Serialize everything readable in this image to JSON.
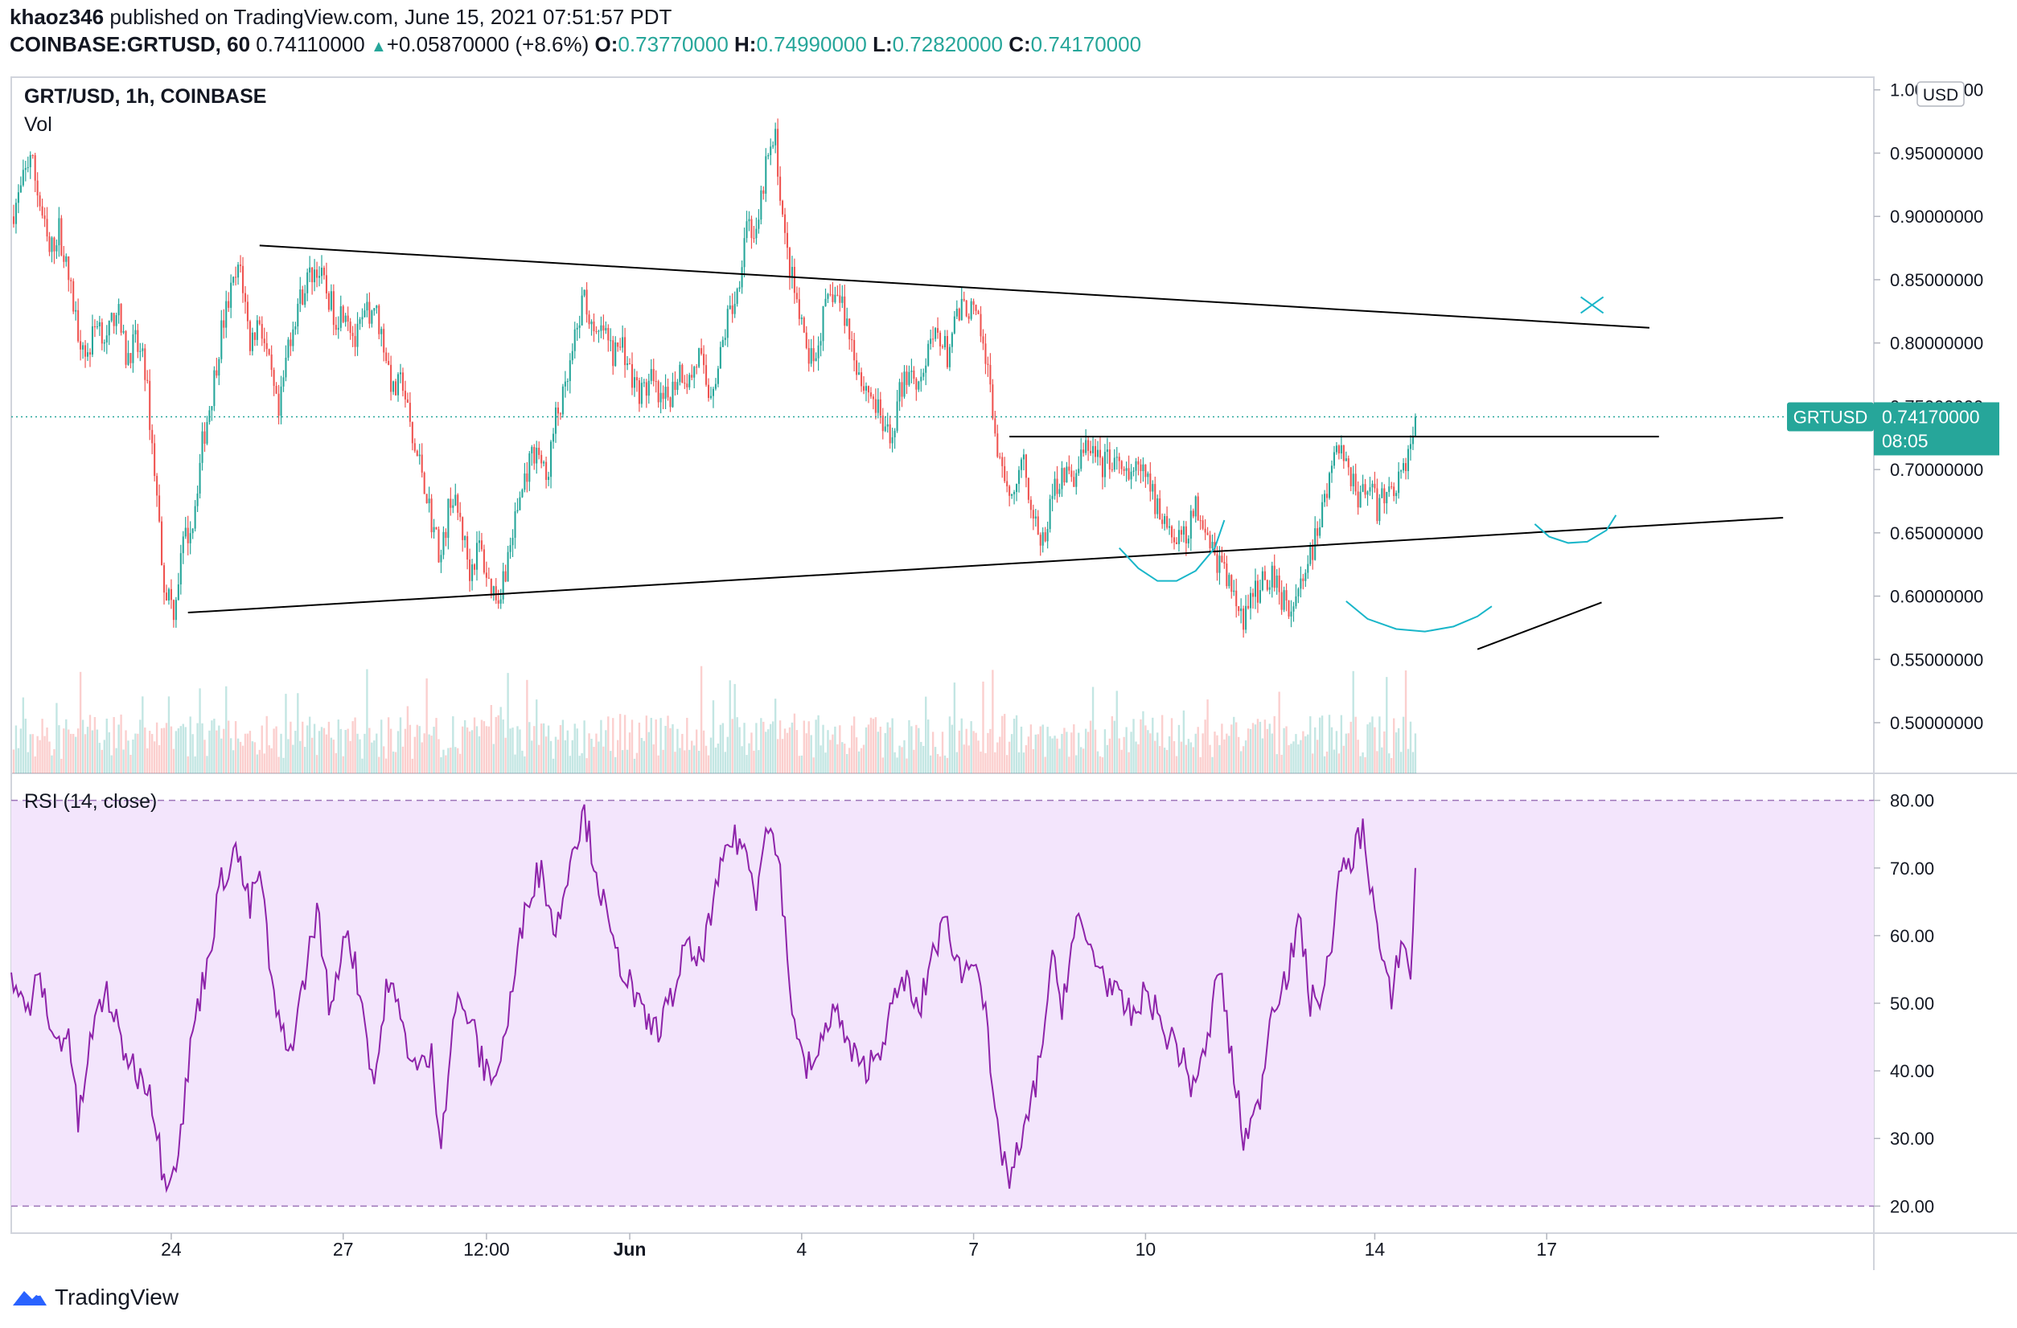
{
  "header": {
    "author": "khaoz346",
    "published_text": "published on TradingView.com, June 15, 2021 07:51:57 PDT",
    "symbol_line": "COINBASE:GRTUSD, 60",
    "last": "0.74110000",
    "change": "+0.05870000 (+8.6%)",
    "o_label": "O:",
    "o": "0.73770000",
    "h_label": "H:",
    "h": "0.74990000",
    "l_label": "L:",
    "l": "0.72820000",
    "c_label": "C:",
    "c": "0.74170000"
  },
  "panes": {
    "price_legend_1": "GRT/USD, 1h, COINBASE",
    "price_legend_2": "Vol",
    "rsi_legend": "RSI (14, close)",
    "currency_badge": "USD"
  },
  "price_label": {
    "symbol": "GRTUSD",
    "value": "0.74170000",
    "countdown": "08:05"
  },
  "footer": {
    "brand": "TradingView"
  },
  "colors": {
    "up": "#26a69a",
    "down": "#ef5350",
    "rsi_line": "#8e24aa",
    "rsi_band": "#f3e5fc",
    "drawing": "#000000",
    "accent_curve": "#19b6c9"
  },
  "chart_data": [
    {
      "type": "candlestick",
      "title": "GRT/USD, 1h, COINBASE",
      "ylim": [
        0.46,
        1.01
      ],
      "y_ticks": [
        "0.50000000",
        "0.55000000",
        "0.60000000",
        "0.65000000",
        "0.70000000",
        "0.75000000",
        "0.80000000",
        "0.85000000",
        "0.90000000",
        "0.95000000",
        "1.00000000"
      ],
      "x_ticks": [
        "24",
        "27",
        "12:00",
        "Jun",
        "4",
        "7",
        "10",
        "14",
        "17"
      ],
      "x_tick_hours": [
        67,
        139,
        199,
        259,
        331,
        403,
        475,
        571,
        643
      ],
      "close_path": [
        [
          0,
          0.9
        ],
        [
          4,
          0.92
        ],
        [
          8,
          0.95
        ],
        [
          12,
          0.91
        ],
        [
          16,
          0.87
        ],
        [
          20,
          0.89
        ],
        [
          24,
          0.85
        ],
        [
          28,
          0.81
        ],
        [
          32,
          0.79
        ],
        [
          36,
          0.82
        ],
        [
          40,
          0.8
        ],
        [
          44,
          0.83
        ],
        [
          48,
          0.79
        ],
        [
          52,
          0.8
        ],
        [
          56,
          0.78
        ],
        [
          60,
          0.7
        ],
        [
          64,
          0.61
        ],
        [
          68,
          0.59
        ],
        [
          72,
          0.64
        ],
        [
          76,
          0.66
        ],
        [
          80,
          0.72
        ],
        [
          84,
          0.76
        ],
        [
          88,
          0.81
        ],
        [
          92,
          0.84
        ],
        [
          96,
          0.86
        ],
        [
          100,
          0.8
        ],
        [
          104,
          0.82
        ],
        [
          108,
          0.78
        ],
        [
          112,
          0.74
        ],
        [
          116,
          0.8
        ],
        [
          120,
          0.83
        ],
        [
          124,
          0.85
        ],
        [
          128,
          0.86
        ],
        [
          132,
          0.84
        ],
        [
          136,
          0.82
        ],
        [
          140,
          0.83
        ],
        [
          144,
          0.8
        ],
        [
          148,
          0.82
        ],
        [
          152,
          0.83
        ],
        [
          156,
          0.8
        ],
        [
          160,
          0.76
        ],
        [
          164,
          0.77
        ],
        [
          168,
          0.72
        ],
        [
          172,
          0.7
        ],
        [
          176,
          0.66
        ],
        [
          180,
          0.63
        ],
        [
          184,
          0.68
        ],
        [
          188,
          0.66
        ],
        [
          192,
          0.62
        ],
        [
          196,
          0.64
        ],
        [
          200,
          0.61
        ],
        [
          204,
          0.6
        ],
        [
          208,
          0.63
        ],
        [
          212,
          0.67
        ],
        [
          216,
          0.7
        ],
        [
          220,
          0.72
        ],
        [
          224,
          0.69
        ],
        [
          228,
          0.74
        ],
        [
          232,
          0.76
        ],
        [
          236,
          0.8
        ],
        [
          240,
          0.84
        ],
        [
          244,
          0.8
        ],
        [
          248,
          0.81
        ],
        [
          252,
          0.79
        ],
        [
          256,
          0.8
        ],
        [
          260,
          0.77
        ],
        [
          264,
          0.76
        ],
        [
          268,
          0.77
        ],
        [
          272,
          0.75
        ],
        [
          276,
          0.76
        ],
        [
          280,
          0.78
        ],
        [
          284,
          0.77
        ],
        [
          288,
          0.79
        ],
        [
          292,
          0.76
        ],
        [
          296,
          0.78
        ],
        [
          300,
          0.82
        ],
        [
          304,
          0.84
        ],
        [
          308,
          0.9
        ],
        [
          312,
          0.88
        ],
        [
          316,
          0.94
        ],
        [
          320,
          0.96
        ],
        [
          324,
          0.88
        ],
        [
          328,
          0.84
        ],
        [
          332,
          0.8
        ],
        [
          336,
          0.78
        ],
        [
          340,
          0.82
        ],
        [
          344,
          0.84
        ],
        [
          348,
          0.83
        ],
        [
          352,
          0.8
        ],
        [
          356,
          0.77
        ],
        [
          360,
          0.76
        ],
        [
          364,
          0.74
        ],
        [
          368,
          0.72
        ],
        [
          372,
          0.76
        ],
        [
          376,
          0.78
        ],
        [
          380,
          0.77
        ],
        [
          384,
          0.79
        ],
        [
          388,
          0.81
        ],
        [
          392,
          0.79
        ],
        [
          396,
          0.82
        ],
        [
          400,
          0.83
        ],
        [
          404,
          0.82
        ],
        [
          408,
          0.79
        ],
        [
          412,
          0.73
        ],
        [
          416,
          0.68
        ],
        [
          420,
          0.69
        ],
        [
          424,
          0.71
        ],
        [
          428,
          0.66
        ],
        [
          432,
          0.64
        ],
        [
          436,
          0.68
        ],
        [
          440,
          0.7
        ],
        [
          444,
          0.69
        ],
        [
          448,
          0.71
        ],
        [
          452,
          0.72
        ],
        [
          456,
          0.7
        ],
        [
          460,
          0.71
        ],
        [
          464,
          0.7
        ],
        [
          468,
          0.69
        ],
        [
          472,
          0.7
        ],
        [
          476,
          0.69
        ],
        [
          480,
          0.67
        ],
        [
          484,
          0.66
        ],
        [
          488,
          0.64
        ],
        [
          492,
          0.65
        ],
        [
          496,
          0.67
        ],
        [
          500,
          0.66
        ],
        [
          504,
          0.63
        ],
        [
          508,
          0.62
        ],
        [
          512,
          0.6
        ],
        [
          516,
          0.58
        ],
        [
          520,
          0.6
        ],
        [
          524,
          0.61
        ],
        [
          528,
          0.62
        ],
        [
          532,
          0.6
        ],
        [
          536,
          0.59
        ],
        [
          540,
          0.61
        ],
        [
          544,
          0.63
        ],
        [
          548,
          0.66
        ],
        [
          552,
          0.69
        ],
        [
          556,
          0.72
        ],
        [
          560,
          0.7
        ],
        [
          564,
          0.68
        ],
        [
          568,
          0.69
        ],
        [
          572,
          0.67
        ],
        [
          576,
          0.68
        ],
        [
          580,
          0.69
        ],
        [
          584,
          0.7
        ],
        [
          588,
          0.7417
        ]
      ]
    },
    {
      "type": "line",
      "title": "RSI (14, close)",
      "ylim": [
        16,
        84
      ],
      "band": [
        20,
        80
      ],
      "y_ticks": [
        "20.00",
        "30.00",
        "40.00",
        "50.00",
        "60.00",
        "70.00",
        "80.00"
      ],
      "points": [
        [
          0,
          55
        ],
        [
          6,
          48
        ],
        [
          12,
          54
        ],
        [
          18,
          44
        ],
        [
          24,
          46
        ],
        [
          28,
          32
        ],
        [
          34,
          46
        ],
        [
          40,
          52
        ],
        [
          46,
          44
        ],
        [
          52,
          40
        ],
        [
          58,
          38
        ],
        [
          64,
          24
        ],
        [
          70,
          28
        ],
        [
          76,
          46
        ],
        [
          82,
          56
        ],
        [
          88,
          68
        ],
        [
          94,
          73
        ],
        [
          100,
          64
        ],
        [
          104,
          70
        ],
        [
          110,
          50
        ],
        [
          116,
          42
        ],
        [
          122,
          52
        ],
        [
          128,
          64
        ],
        [
          134,
          48
        ],
        [
          140,
          62
        ],
        [
          146,
          52
        ],
        [
          152,
          38
        ],
        [
          158,
          54
        ],
        [
          164,
          46
        ],
        [
          170,
          40
        ],
        [
          176,
          42
        ],
        [
          180,
          30
        ],
        [
          186,
          50
        ],
        [
          192,
          48
        ],
        [
          198,
          40
        ],
        [
          204,
          40
        ],
        [
          210,
          52
        ],
        [
          216,
          66
        ],
        [
          222,
          70
        ],
        [
          228,
          60
        ],
        [
          234,
          72
        ],
        [
          240,
          78
        ],
        [
          246,
          68
        ],
        [
          252,
          58
        ],
        [
          258,
          54
        ],
        [
          264,
          48
        ],
        [
          270,
          46
        ],
        [
          276,
          50
        ],
        [
          282,
          58
        ],
        [
          288,
          56
        ],
        [
          294,
          64
        ],
        [
          300,
          74
        ],
        [
          306,
          74
        ],
        [
          312,
          66
        ],
        [
          316,
          78
        ],
        [
          322,
          70
        ],
        [
          326,
          52
        ],
        [
          332,
          40
        ],
        [
          338,
          42
        ],
        [
          344,
          50
        ],
        [
          350,
          44
        ],
        [
          356,
          40
        ],
        [
          362,
          42
        ],
        [
          368,
          48
        ],
        [
          374,
          54
        ],
        [
          380,
          48
        ],
        [
          386,
          58
        ],
        [
          392,
          62
        ],
        [
          398,
          54
        ],
        [
          404,
          58
        ],
        [
          408,
          48
        ],
        [
          412,
          32
        ],
        [
          418,
          24
        ],
        [
          424,
          30
        ],
        [
          430,
          40
        ],
        [
          436,
          56
        ],
        [
          440,
          50
        ],
        [
          446,
          62
        ],
        [
          452,
          58
        ],
        [
          458,
          54
        ],
        [
          464,
          50
        ],
        [
          470,
          48
        ],
        [
          476,
          52
        ],
        [
          482,
          46
        ],
        [
          488,
          44
        ],
        [
          494,
          38
        ],
        [
          500,
          42
        ],
        [
          506,
          56
        ],
        [
          510,
          44
        ],
        [
          516,
          30
        ],
        [
          522,
          34
        ],
        [
          528,
          50
        ],
        [
          534,
          54
        ],
        [
          540,
          62
        ],
        [
          544,
          50
        ],
        [
          550,
          52
        ],
        [
          556,
          68
        ],
        [
          562,
          72
        ],
        [
          566,
          76
        ],
        [
          570,
          66
        ],
        [
          574,
          56
        ],
        [
          578,
          50
        ],
        [
          582,
          60
        ],
        [
          586,
          54
        ],
        [
          588,
          70
        ]
      ]
    }
  ]
}
